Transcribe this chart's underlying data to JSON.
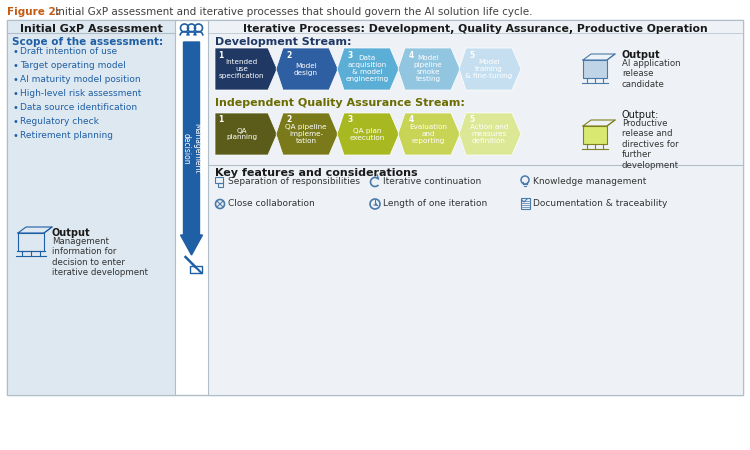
{
  "figure_caption": "Figure 2:",
  "figure_caption_color": "#C55A11",
  "figure_text": " Initial GxP assessment and iterative processes that should govern the AI solution life cycle.",
  "figure_text_color": "#404040",
  "bg_color": "#ffffff",
  "left_panel_bg": "#dde8f0",
  "right_panel_bg": "#eef2f6",
  "left_title": "Initial GxP Assessment",
  "left_scope_title": "Scope of the assessment:",
  "left_scope_color": "#1f5fa6",
  "bullet_items": [
    "Draft intention of use",
    "Target operating model",
    "AI maturity model position",
    "High-level risk assessment",
    "Data source identification",
    "Regulatory check",
    "Retirement planning"
  ],
  "left_output_bold": "Output",
  "left_output_text": "Management\ninformation for\ndecision to enter\niterative development",
  "right_title": "Iterative Processes: Development, Quality Assurance, Productive Operation",
  "dev_stream_title": "Development Stream:",
  "dev_steps": [
    {
      "num": "1",
      "text": "Intended\nuse\nspecification",
      "color": "#1f3864"
    },
    {
      "num": "2",
      "text": "Model\ndesign",
      "color": "#2e5fa3"
    },
    {
      "num": "3",
      "text": "Data\nacquisition\n& model\nengineering",
      "color": "#5bafd6"
    },
    {
      "num": "4",
      "text": "Model\npipeline\nsmoke\ntesting",
      "color": "#92c5e0"
    },
    {
      "num": "5",
      "text": "Model\ntraining\n& fine-tuning",
      "color": "#c5dff0"
    }
  ],
  "dev_output_bold": "Output",
  "dev_output_text": "AI application\nrelease\ncandidate",
  "qa_stream_title": "Independent Quality Assurance Stream:",
  "qa_steps": [
    {
      "num": "1",
      "text": "QA\nplanning",
      "color": "#5c5c1a"
    },
    {
      "num": "2",
      "text": "QA pipeline\nimpleme-\ntation",
      "color": "#7a7a1a"
    },
    {
      "num": "3",
      "text": "QA plan\nexecution",
      "color": "#a8b820"
    },
    {
      "num": "4",
      "text": "Evaluation\nand\nreporting",
      "color": "#c8d455"
    },
    {
      "num": "5",
      "text": "Action and\nmeasures\ndefinition",
      "color": "#dce896"
    }
  ],
  "qa_output_bold": "Output:",
  "qa_output_text": "Productive\nrelease and\ndirectives for\nfurther\ndevelopment",
  "key_features_title": "Key features and considerations",
  "arrow_color": "#1f5fa6",
  "dev_title_color": "#1f3864",
  "qa_title_color": "#6b6b00",
  "panel_border_color": "#b0bec8",
  "management_text": "Management\ndecision",
  "management_color": "#ffffff",
  "icon_color": "#4a7aaa"
}
